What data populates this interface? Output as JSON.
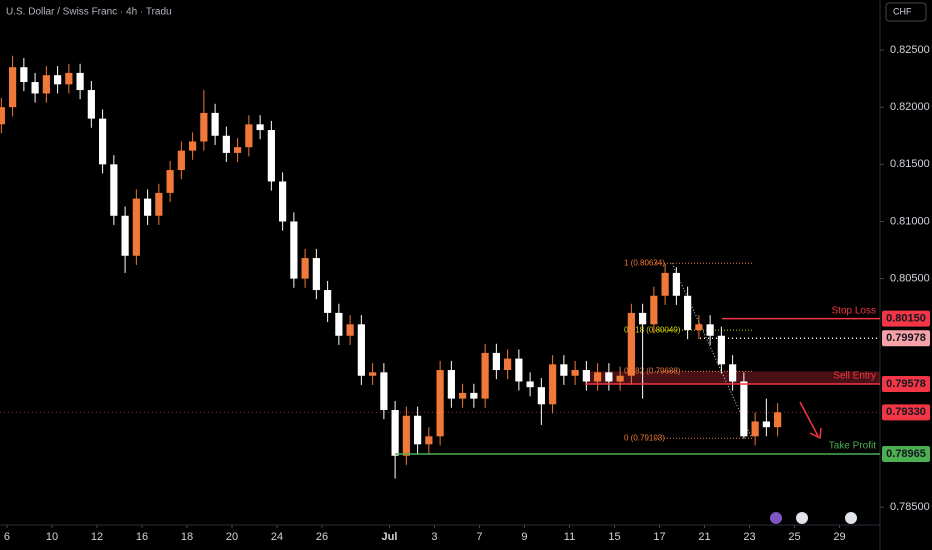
{
  "chart_data": {
    "type": "candlestick",
    "title": "U.S. Dollar / Swiss Franc · 4h · Tradu",
    "currency": "CHF",
    "x": [
      -0.25,
      0.25,
      0.75,
      1.25,
      1.75,
      2.25,
      2.75,
      3.25,
      3.75,
      4.25,
      4.75,
      5.25,
      5.75,
      6.25,
      6.75,
      7.25,
      7.75,
      8.25,
      8.75,
      9.25,
      9.75,
      10.25,
      10.75,
      11.25,
      11.75,
      12.25,
      12.75,
      13.25,
      13.75,
      14.25,
      14.75,
      15.25,
      15.75,
      16.25,
      16.75,
      17.25,
      17.75,
      18.25,
      18.75,
      19.25,
      19.75,
      20.25,
      20.75,
      21.25,
      21.75,
      22.25,
      22.75,
      23.25,
      23.75,
      24.25,
      24.75,
      25.25,
      25.75,
      26.25,
      26.75,
      27.25,
      27.75,
      28.25,
      28.75,
      29.25,
      29.75,
      30.25,
      30.75,
      31.25,
      31.75,
      32.25,
      32.75,
      33.25,
      33.75,
      34.25
    ],
    "open": [
      0.8185,
      0.82,
      0.8235,
      0.8222,
      0.8212,
      0.8228,
      0.822,
      0.823,
      0.8215,
      0.819,
      0.815,
      0.8105,
      0.807,
      0.812,
      0.8105,
      0.8125,
      0.8145,
      0.8162,
      0.817,
      0.8195,
      0.8175,
      0.816,
      0.8165,
      0.8185,
      0.818,
      0.8135,
      0.81,
      0.805,
      0.8068,
      0.804,
      0.802,
      0.8,
      0.801,
      0.7965,
      0.7968,
      0.7935,
      0.7895,
      0.793,
      0.7905,
      0.7912,
      0.797,
      0.7945,
      0.795,
      0.7945,
      0.7985,
      0.797,
      0.798,
      0.796,
      0.7955,
      0.794,
      0.7975,
      0.7965,
      0.797,
      0.796,
      0.7968,
      0.796,
      0.7965,
      0.802,
      0.801,
      0.8035,
      0.8055,
      0.8035,
      0.8005,
      0.801,
      0.8,
      0.7975,
      0.796,
      0.7912,
      0.7925,
      0.792
    ],
    "high": [
      0.8208,
      0.8245,
      0.8243,
      0.823,
      0.8236,
      0.8236,
      0.8238,
      0.8238,
      0.8223,
      0.8198,
      0.8158,
      0.8113,
      0.8128,
      0.8128,
      0.8133,
      0.8153,
      0.817,
      0.8178,
      0.8215,
      0.8203,
      0.8183,
      0.8173,
      0.8193,
      0.8193,
      0.8188,
      0.8143,
      0.8108,
      0.8076,
      0.8076,
      0.8048,
      0.8028,
      0.8018,
      0.8018,
      0.7976,
      0.7976,
      0.7943,
      0.7938,
      0.7938,
      0.792,
      0.7978,
      0.7978,
      0.7958,
      0.7958,
      0.7993,
      0.7993,
      0.7988,
      0.7988,
      0.7968,
      0.7963,
      0.7983,
      0.7983,
      0.7978,
      0.7978,
      0.7976,
      0.7976,
      0.7973,
      0.8028,
      0.8028,
      0.8043,
      0.8063,
      0.806,
      0.8043,
      0.8018,
      0.8018,
      0.8008,
      0.7983,
      0.7968,
      0.7933,
      0.7945,
      0.7941
    ],
    "low": [
      0.8177,
      0.8192,
      0.8214,
      0.8204,
      0.8204,
      0.8212,
      0.8212,
      0.8207,
      0.8182,
      0.8142,
      0.8097,
      0.8055,
      0.8062,
      0.8097,
      0.8097,
      0.8117,
      0.8137,
      0.8154,
      0.8162,
      0.8167,
      0.8152,
      0.8152,
      0.8157,
      0.8172,
      0.8127,
      0.8092,
      0.8042,
      0.8042,
      0.8032,
      0.8012,
      0.7992,
      0.7992,
      0.7957,
      0.7957,
      0.7927,
      0.7875,
      0.7887,
      0.7897,
      0.7897,
      0.7904,
      0.7937,
      0.7937,
      0.7937,
      0.7937,
      0.7962,
      0.7962,
      0.7952,
      0.7947,
      0.7922,
      0.7932,
      0.7957,
      0.7957,
      0.7952,
      0.7952,
      0.7952,
      0.7952,
      0.7957,
      0.7945,
      0.8002,
      0.8027,
      0.8027,
      0.7997,
      0.7997,
      0.7992,
      0.7967,
      0.7952,
      0.791,
      0.7904,
      0.7912,
      0.7912
    ],
    "close": [
      0.82,
      0.8235,
      0.8222,
      0.8212,
      0.8228,
      0.822,
      0.823,
      0.8215,
      0.819,
      0.815,
      0.8105,
      0.807,
      0.812,
      0.8105,
      0.8125,
      0.8145,
      0.8162,
      0.817,
      0.8195,
      0.8175,
      0.816,
      0.8165,
      0.8185,
      0.818,
      0.8135,
      0.81,
      0.805,
      0.8068,
      0.804,
      0.802,
      0.8,
      0.801,
      0.7965,
      0.7968,
      0.7935,
      0.7895,
      0.793,
      0.7905,
      0.7912,
      0.797,
      0.7945,
      0.795,
      0.7945,
      0.7985,
      0.797,
      0.798,
      0.796,
      0.7955,
      0.794,
      0.7975,
      0.7965,
      0.797,
      0.796,
      0.7968,
      0.796,
      0.7965,
      0.802,
      0.801,
      0.8035,
      0.8055,
      0.8035,
      0.8005,
      0.801,
      0.8,
      0.7975,
      0.796,
      0.7912,
      0.7925,
      0.792,
      0.7933
    ],
    "up_color": "#f07838",
    "down_color": "#ffffff",
    "xlim": [
      -0.31,
      38.8
    ],
    "ylim": [
      0.78344,
      0.82938
    ],
    "xticks": [
      {
        "value": 0,
        "label": "6"
      },
      {
        "value": 2,
        "label": "10"
      },
      {
        "value": 4,
        "label": "12"
      },
      {
        "value": 6,
        "label": "16"
      },
      {
        "value": 8,
        "label": "18"
      },
      {
        "value": 10,
        "label": "20"
      },
      {
        "value": 12,
        "label": "24"
      },
      {
        "value": 14,
        "label": "26"
      },
      {
        "value": 17,
        "label": "Jul"
      },
      {
        "value": 19,
        "label": "3"
      },
      {
        "value": 21,
        "label": "7"
      },
      {
        "value": 23,
        "label": "9"
      },
      {
        "value": 25,
        "label": "11"
      },
      {
        "value": 27,
        "label": "15"
      },
      {
        "value": 29,
        "label": "17"
      },
      {
        "value": 31,
        "label": "21"
      },
      {
        "value": 33,
        "label": "23"
      },
      {
        "value": 35,
        "label": "25"
      },
      {
        "value": 37,
        "label": "29"
      }
    ],
    "yticks": [
      {
        "value": 0.785,
        "label": "0.78500"
      },
      {
        "value": 0.805,
        "label": "0.80500"
      },
      {
        "value": 0.81,
        "label": "0.81000"
      },
      {
        "value": 0.815,
        "label": "0.81500"
      },
      {
        "value": 0.82,
        "label": "0.82000"
      },
      {
        "value": 0.825,
        "label": "0.82500"
      }
    ],
    "levels": [
      {
        "name": "Stop Loss",
        "value": 0.8015,
        "label": "0.80150",
        "color": "#f23645"
      },
      {
        "value": 0.79978,
        "label": "0.79978",
        "color": "#f7a1a8"
      },
      {
        "name": "Sell Entry",
        "value": 0.79578,
        "label": "0.79578",
        "color": "#f23645"
      },
      {
        "name": "Take Profit",
        "value": 0.78965,
        "label": "0.78965",
        "color": "#4caf50"
      }
    ],
    "last_price": {
      "value": 0.7933,
      "label": "0.79330",
      "color": "#f23645"
    },
    "fib": [
      {
        "label": "1 (0.80634)",
        "value": 0.80634
      },
      {
        "label": "0.618 (0.80049)",
        "value": 0.80049
      },
      {
        "label": "0.382 (0.79688)",
        "value": 0.79688
      },
      {
        "label": "0 (0.79103)",
        "value": 0.79103
      }
    ]
  }
}
